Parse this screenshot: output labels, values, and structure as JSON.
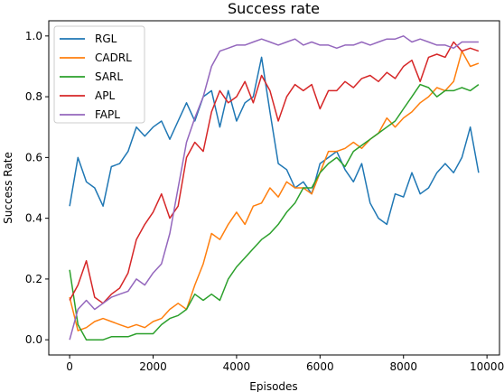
{
  "chart_data": {
    "type": "line",
    "title": "Success rate",
    "xlabel": "Episodes",
    "ylabel": "Success Rate",
    "xlim": [
      -500,
      10300
    ],
    "ylim": [
      -0.05,
      1.05
    ],
    "xticks": [
      0,
      2000,
      4000,
      6000,
      8000,
      10000
    ],
    "yticks": [
      0.0,
      0.2,
      0.4,
      0.6,
      0.8,
      1.0
    ],
    "xtick_labels": [
      "0",
      "2000",
      "4000",
      "6000",
      "8000",
      "10000"
    ],
    "ytick_labels": [
      "0.0",
      "0.2",
      "0.4",
      "0.6",
      "0.8",
      "1.0"
    ],
    "grid": false,
    "legend_placement": "upper-left",
    "series": [
      {
        "name": "RGL",
        "color": "#1f77b4",
        "x": [
          0,
          200,
          400,
          600,
          800,
          1000,
          1200,
          1400,
          1600,
          1800,
          2000,
          2200,
          2400,
          2600,
          2800,
          3000,
          3200,
          3400,
          3600,
          3800,
          4000,
          4200,
          4400,
          4600,
          4800,
          5000,
          5200,
          5400,
          5600,
          5800,
          6000,
          6200,
          6400,
          6600,
          6800,
          7000,
          7200,
          7400,
          7600,
          7800,
          8000,
          8200,
          8400,
          8600,
          8800,
          9000,
          9200,
          9400,
          9600,
          9800
        ],
        "y": [
          0.44,
          0.6,
          0.52,
          0.5,
          0.44,
          0.57,
          0.58,
          0.62,
          0.7,
          0.67,
          0.7,
          0.72,
          0.66,
          0.72,
          0.78,
          0.72,
          0.8,
          0.82,
          0.7,
          0.82,
          0.72,
          0.78,
          0.8,
          0.93,
          0.75,
          0.58,
          0.56,
          0.5,
          0.52,
          0.48,
          0.58,
          0.6,
          0.62,
          0.56,
          0.52,
          0.58,
          0.45,
          0.4,
          0.38,
          0.48,
          0.47,
          0.55,
          0.48,
          0.5,
          0.55,
          0.58,
          0.55,
          0.6,
          0.7,
          0.55
        ]
      },
      {
        "name": "CADRL",
        "color": "#ff7f0e",
        "x": [
          0,
          200,
          400,
          600,
          800,
          1000,
          1200,
          1400,
          1600,
          1800,
          2000,
          2200,
          2400,
          2600,
          2800,
          3000,
          3200,
          3400,
          3600,
          3800,
          4000,
          4200,
          4400,
          4600,
          4800,
          5000,
          5200,
          5400,
          5600,
          5800,
          6000,
          6200,
          6400,
          6600,
          6800,
          7000,
          7200,
          7400,
          7600,
          7800,
          8000,
          8200,
          8400,
          8600,
          8800,
          9000,
          9200,
          9400,
          9600,
          9800
        ],
        "y": [
          0.14,
          0.03,
          0.04,
          0.06,
          0.07,
          0.06,
          0.05,
          0.04,
          0.05,
          0.04,
          0.06,
          0.07,
          0.1,
          0.12,
          0.1,
          0.18,
          0.25,
          0.35,
          0.33,
          0.38,
          0.42,
          0.38,
          0.44,
          0.45,
          0.5,
          0.47,
          0.52,
          0.5,
          0.5,
          0.48,
          0.55,
          0.62,
          0.62,
          0.63,
          0.65,
          0.63,
          0.66,
          0.68,
          0.73,
          0.7,
          0.73,
          0.75,
          0.78,
          0.8,
          0.83,
          0.82,
          0.85,
          0.95,
          0.9,
          0.91
        ]
      },
      {
        "name": "SARL",
        "color": "#2ca02c",
        "x": [
          0,
          200,
          400,
          600,
          800,
          1000,
          1200,
          1400,
          1600,
          1800,
          2000,
          2200,
          2400,
          2600,
          2800,
          3000,
          3200,
          3400,
          3600,
          3800,
          4000,
          4200,
          4400,
          4600,
          4800,
          5000,
          5200,
          5400,
          5600,
          5800,
          6000,
          6200,
          6400,
          6600,
          6800,
          7000,
          7200,
          7400,
          7600,
          7800,
          8000,
          8200,
          8400,
          8600,
          8800,
          9000,
          9200,
          9400,
          9600,
          9800
        ],
        "y": [
          0.23,
          0.05,
          0.0,
          0.0,
          0.0,
          0.01,
          0.01,
          0.01,
          0.02,
          0.02,
          0.02,
          0.05,
          0.07,
          0.08,
          0.1,
          0.15,
          0.13,
          0.15,
          0.13,
          0.2,
          0.24,
          0.27,
          0.3,
          0.33,
          0.35,
          0.38,
          0.42,
          0.45,
          0.5,
          0.5,
          0.55,
          0.58,
          0.6,
          0.57,
          0.62,
          0.64,
          0.66,
          0.68,
          0.7,
          0.72,
          0.76,
          0.8,
          0.84,
          0.83,
          0.8,
          0.82,
          0.82,
          0.83,
          0.82,
          0.84
        ]
      },
      {
        "name": "APL",
        "color": "#d62728",
        "x": [
          0,
          200,
          400,
          600,
          800,
          1000,
          1200,
          1400,
          1600,
          1800,
          2000,
          2200,
          2400,
          2600,
          2800,
          3000,
          3200,
          3400,
          3600,
          3800,
          4000,
          4200,
          4400,
          4600,
          4800,
          5000,
          5200,
          5400,
          5600,
          5800,
          6000,
          6200,
          6400,
          6600,
          6800,
          7000,
          7200,
          7400,
          7600,
          7800,
          8000,
          8200,
          8400,
          8600,
          8800,
          9000,
          9200,
          9400,
          9600,
          9800
        ],
        "y": [
          0.13,
          0.18,
          0.26,
          0.14,
          0.12,
          0.15,
          0.17,
          0.22,
          0.33,
          0.38,
          0.42,
          0.48,
          0.4,
          0.44,
          0.6,
          0.65,
          0.62,
          0.75,
          0.82,
          0.78,
          0.8,
          0.85,
          0.78,
          0.87,
          0.82,
          0.72,
          0.8,
          0.84,
          0.82,
          0.84,
          0.76,
          0.82,
          0.82,
          0.85,
          0.83,
          0.86,
          0.87,
          0.85,
          0.88,
          0.86,
          0.9,
          0.92,
          0.85,
          0.93,
          0.94,
          0.93,
          0.98,
          0.95,
          0.96,
          0.95
        ]
      },
      {
        "name": "FAPL",
        "color": "#9467bd",
        "x": [
          0,
          200,
          400,
          600,
          800,
          1000,
          1200,
          1400,
          1600,
          1800,
          2000,
          2200,
          2400,
          2600,
          2800,
          3000,
          3200,
          3400,
          3600,
          3800,
          4000,
          4200,
          4400,
          4600,
          4800,
          5000,
          5200,
          5400,
          5600,
          5800,
          6000,
          6200,
          6400,
          6600,
          6800,
          7000,
          7200,
          7400,
          7600,
          7800,
          8000,
          8200,
          8400,
          8600,
          8800,
          9000,
          9200,
          9400,
          9600,
          9800
        ],
        "y": [
          0.0,
          0.1,
          0.13,
          0.1,
          0.12,
          0.14,
          0.15,
          0.16,
          0.2,
          0.18,
          0.22,
          0.25,
          0.35,
          0.5,
          0.65,
          0.73,
          0.8,
          0.9,
          0.95,
          0.96,
          0.97,
          0.97,
          0.98,
          0.99,
          0.98,
          0.97,
          0.98,
          0.99,
          0.97,
          0.98,
          0.97,
          0.97,
          0.96,
          0.97,
          0.97,
          0.98,
          0.97,
          0.98,
          0.99,
          0.99,
          1.0,
          0.98,
          0.99,
          0.98,
          0.97,
          0.97,
          0.96,
          0.98,
          0.98,
          0.98
        ]
      }
    ]
  }
}
